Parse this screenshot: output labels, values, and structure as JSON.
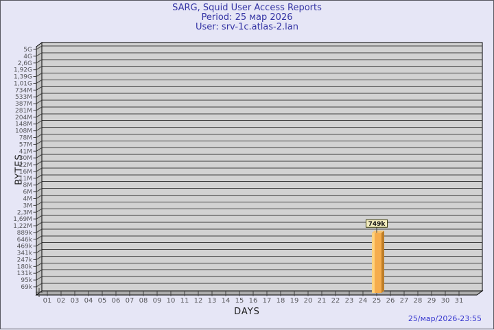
{
  "window": {
    "bg": "#E6E6F6",
    "border": "#55555E"
  },
  "chart_data": {
    "type": "bar",
    "title": "SARG, Squid User Access Reports",
    "period": "Period: 25 мар 2026",
    "user": "User: srv-1c.atlas-2.lan",
    "ylabel": "BYTES",
    "xlabel": "DAYS",
    "footer_timestamp": "25/мар/2026-23:55",
    "y_scale": "log",
    "y_max_bytes": 5000000000,
    "y_min_bytes": 69000,
    "y_tick_labels": [
      "5G",
      "4G",
      "2,6G",
      "1,92G",
      "1,39G",
      "1,01G",
      "734M",
      "533M",
      "387M",
      "281M",
      "204M",
      "148M",
      "108M",
      "78M",
      "57M",
      "41M",
      "30M",
      "22M",
      "16M",
      "11M",
      "8M",
      "6M",
      "4M",
      "3M",
      "2,3M",
      "1,69M",
      "1,22M",
      "889k",
      "646k",
      "469k",
      "341k",
      "247k",
      "180k",
      "131k",
      "95k",
      "69k"
    ],
    "x_tick_labels": [
      "01",
      "02",
      "03",
      "04",
      "05",
      "06",
      "07",
      "08",
      "09",
      "10",
      "11",
      "12",
      "13",
      "14",
      "15",
      "16",
      "17",
      "18",
      "19",
      "20",
      "21",
      "22",
      "23",
      "24",
      "25",
      "26",
      "27",
      "28",
      "29",
      "30",
      "31"
    ],
    "bars": [
      {
        "day": "25",
        "value_bytes": 749000,
        "label": "749k"
      }
    ],
    "legend": "none",
    "grid": "horizontal",
    "colors": {
      "plot_bg": "#D2D2D2",
      "wall": "#C2C2C2",
      "floor": "#ACACAC",
      "grid": "#3F3F3F",
      "frame": "#000000",
      "tick_text": "#56565A",
      "axis_label_text": "#1B1B1B",
      "title_text": "#3434A4",
      "timestamp_text": "#3737CF",
      "bar_face": "#F5AC4C",
      "bar_highlight": "#FFD27E",
      "bar_side": "#BE7E28",
      "bar_top": "#F7C470",
      "value_box_bg": "#F2ECBE",
      "value_box_border": "#3A3A0A",
      "value_box_text": "#111111"
    }
  }
}
